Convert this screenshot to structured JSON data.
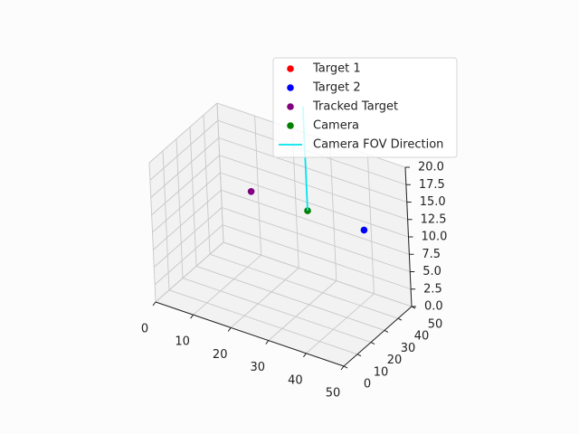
{
  "chart_data": {
    "type": "scatter",
    "projection": "3d",
    "title": "",
    "xlabel": "",
    "ylabel": "",
    "zlabel": "",
    "xlim": [
      0,
      50
    ],
    "ylim": [
      0,
      50
    ],
    "zlim": [
      0,
      20
    ],
    "xticks": [
      "0",
      "10",
      "20",
      "30",
      "40",
      "50"
    ],
    "yticks": [
      "0",
      "10",
      "20",
      "30",
      "40",
      "50"
    ],
    "zticks": [
      "0.0",
      "2.5",
      "5.0",
      "7.5",
      "10.0",
      "12.5",
      "15.0",
      "17.5",
      "20.0"
    ],
    "grid": true,
    "legend_position": "top-right",
    "series": [
      {
        "name": "Target 1",
        "kind": "point",
        "color": "#ff0000",
        "points": []
      },
      {
        "name": "Target 2",
        "kind": "point",
        "color": "#0000ff",
        "points": [
          [
            40,
            45,
            10
          ]
        ]
      },
      {
        "name": "Tracked Target",
        "kind": "point",
        "color": "#800080",
        "points": [
          [
            10,
            45,
            10
          ]
        ]
      },
      {
        "name": "Camera",
        "kind": "point",
        "color": "#008000",
        "points": [
          [
            25,
            45,
            10
          ]
        ]
      },
      {
        "name": "Camera FOV Direction",
        "kind": "line",
        "color": "#00e5ee",
        "points": [
          [
            25,
            45,
            10
          ],
          [
            25,
            45,
            25
          ]
        ]
      }
    ]
  }
}
